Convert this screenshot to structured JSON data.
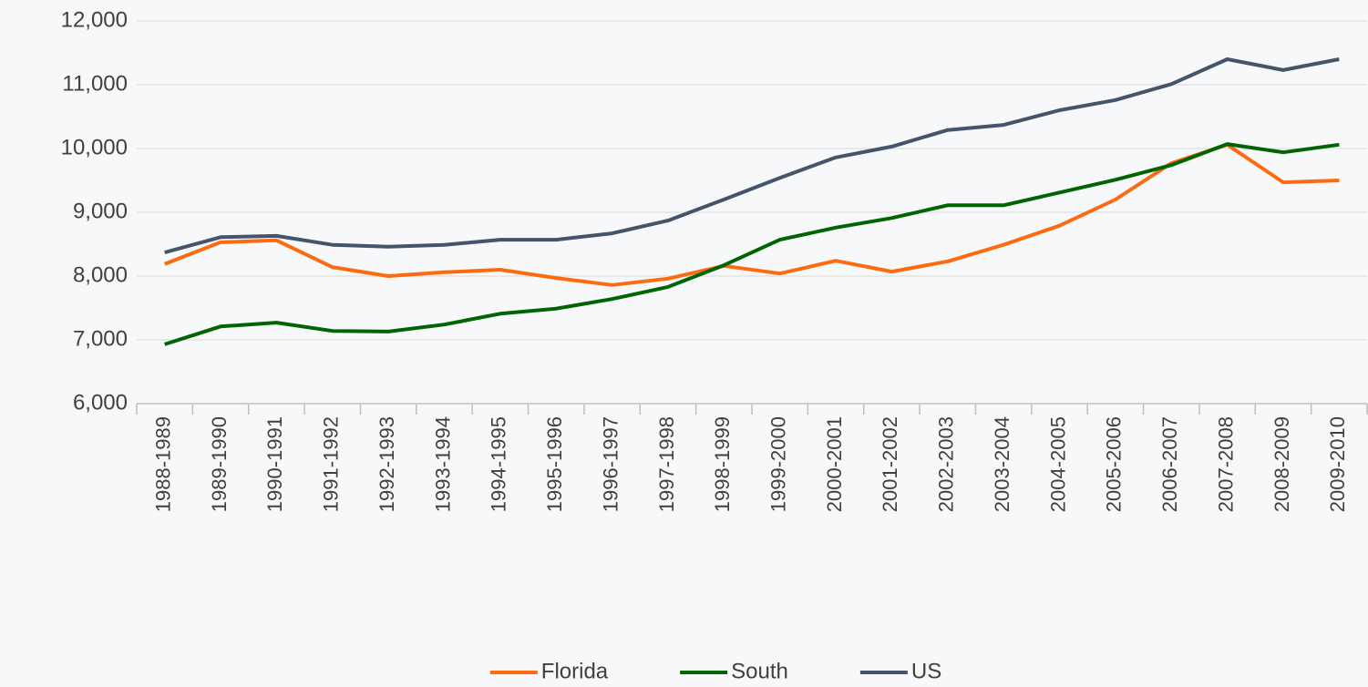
{
  "chart_data": {
    "type": "line",
    "categories": [
      "1988-1989",
      "1989-1990",
      "1990-1991",
      "1991-1992",
      "1992-1993",
      "1993-1994",
      "1994-1995",
      "1995-1996",
      "1996-1997",
      "1997-1998",
      "1998-1999",
      "1999-2000",
      "2000-2001",
      "2001-2002",
      "2002-2003",
      "2003-2004",
      "2004-2005",
      "2005-2006",
      "2006-2007",
      "2007-2008",
      "2008-2009",
      "2009-2010"
    ],
    "series": [
      {
        "name": "Florida",
        "color": "#fd6b10",
        "values": [
          8190,
          8530,
          8560,
          8140,
          8000,
          8060,
          8100,
          7970,
          7860,
          7960,
          8160,
          8040,
          8240,
          8070,
          8230,
          8490,
          8790,
          9200,
          9770,
          10060,
          9470,
          9500
        ]
      },
      {
        "name": "South",
        "color": "#006400",
        "values": [
          6930,
          7210,
          7270,
          7140,
          7130,
          7240,
          7410,
          7490,
          7640,
          7830,
          8170,
          8570,
          8760,
          8910,
          9110,
          9110,
          9310,
          9510,
          9740,
          10070,
          9940,
          10060
        ]
      },
      {
        "name": "US",
        "color": "#44546a",
        "values": [
          8370,
          8610,
          8630,
          8490,
          8460,
          8490,
          8570,
          8570,
          8670,
          8870,
          9200,
          9540,
          9860,
          10030,
          10290,
          10370,
          10600,
          10760,
          11010,
          11400,
          11230,
          11400
        ]
      }
    ],
    "ylim": [
      6000,
      12000
    ],
    "yticks": [
      {
        "value": 6000,
        "label": "6,000"
      },
      {
        "value": 7000,
        "label": "7,000"
      },
      {
        "value": 8000,
        "label": "8,000"
      },
      {
        "value": 9000,
        "label": "9,000"
      },
      {
        "value": 10000,
        "label": "10,000"
      },
      {
        "value": 11000,
        "label": "11,000"
      },
      {
        "value": 12000,
        "label": "12,000"
      }
    ],
    "grid": true,
    "legend": "bottom"
  }
}
